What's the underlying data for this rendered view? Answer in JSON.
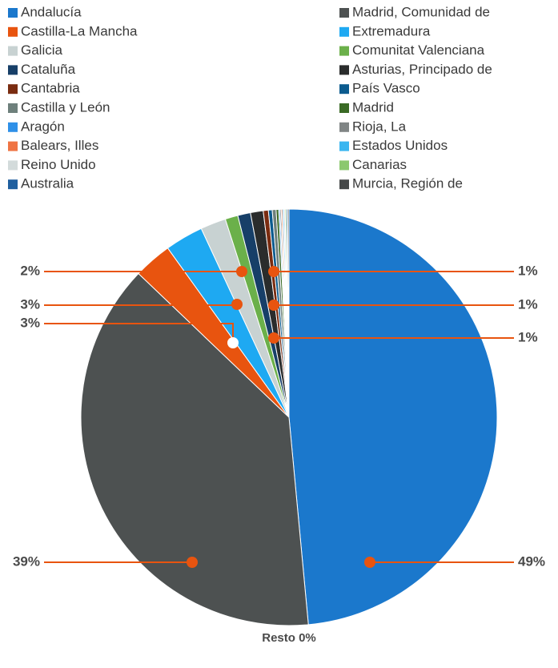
{
  "chart_data": {
    "type": "pie",
    "categories": [
      "Andalucía",
      "Madrid, Comunidad de",
      "Castilla-La Mancha",
      "Extremadura",
      "Galicia",
      "Comunitat Valenciana",
      "Cataluña",
      "Asturias, Principado de",
      "Cantabria",
      "País Vasco",
      "Castilla y León",
      "Madrid",
      "Aragón",
      "Rioja, La",
      "Balears, Illes",
      "Estados Unidos",
      "Reino Unido",
      "Canarias",
      "Australia",
      "Murcia, Región de"
    ],
    "values": [
      49,
      39,
      3,
      3,
      2,
      1,
      1,
      1,
      0.4,
      0.3,
      0.3,
      0.2,
      0.1,
      0.1,
      0.1,
      0.1,
      0.1,
      0.1,
      0.1,
      0.1
    ],
    "value_labels": [
      "49%",
      "39%",
      "3%",
      "3%",
      "2%",
      "1%",
      "1%",
      "1%",
      null,
      null,
      null,
      null,
      null,
      null,
      null,
      null,
      null,
      null,
      null,
      null
    ],
    "colors": [
      "#1b78cc",
      "#4d5151",
      "#e8540f",
      "#1ea9f2",
      "#c8d2d2",
      "#6bb04a",
      "#173f68",
      "#2a2c2c",
      "#7a2c10",
      "#0b5b8e",
      "#6e807c",
      "#3a6a25",
      "#2f90e8",
      "#808585",
      "#ef7444",
      "#3ab6f0",
      "#d3dbdb",
      "#8bc86e",
      "#1f5f9f",
      "#454848"
    ],
    "resto_label": "Resto 0%"
  }
}
